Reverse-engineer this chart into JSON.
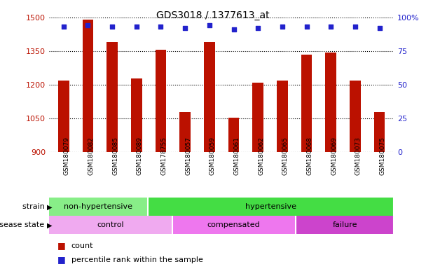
{
  "title": "GDS3018 / 1377613_at",
  "samples": [
    "GSM180079",
    "GSM180082",
    "GSM180085",
    "GSM180089",
    "GSM178755",
    "GSM180057",
    "GSM180059",
    "GSM180061",
    "GSM180062",
    "GSM180065",
    "GSM180068",
    "GSM180069",
    "GSM180073",
    "GSM180075"
  ],
  "counts": [
    1218,
    1492,
    1390,
    1228,
    1355,
    1078,
    1390,
    1052,
    1208,
    1218,
    1335,
    1345,
    1218,
    1078
  ],
  "percentile_ranks": [
    93,
    94,
    93,
    93,
    93,
    92,
    94,
    91,
    92,
    93,
    93,
    93,
    93,
    92
  ],
  "ylim_left": [
    900,
    1500
  ],
  "ylim_right": [
    0,
    100
  ],
  "yticks_left": [
    900,
    1050,
    1200,
    1350,
    1500
  ],
  "yticks_right": [
    0,
    25,
    50,
    75,
    100
  ],
  "bar_color": "#bb1100",
  "dot_color": "#2222cc",
  "strain_groups": [
    {
      "label": "non-hypertensive",
      "start": 0,
      "end": 4,
      "color": "#88ee88"
    },
    {
      "label": "hypertensive",
      "start": 4,
      "end": 14,
      "color": "#44dd44"
    }
  ],
  "disease_groups": [
    {
      "label": "control",
      "start": 0,
      "end": 5,
      "color": "#f0aaf0"
    },
    {
      "label": "compensated",
      "start": 5,
      "end": 10,
      "color": "#ee77ee"
    },
    {
      "label": "failure",
      "start": 10,
      "end": 14,
      "color": "#cc44cc"
    }
  ],
  "strain_label": "strain",
  "disease_label": "disease state",
  "legend_count_label": "count",
  "legend_pct_label": "percentile rank within the sample",
  "xtick_area_color": "#cccccc",
  "background_color": "#ffffff"
}
